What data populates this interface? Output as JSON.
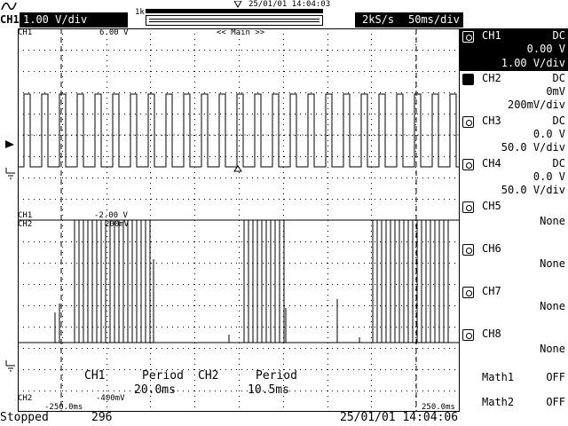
{
  "header": {
    "active_channel": "CH1",
    "active_scale": "1.00 V/div",
    "memory_label": "1k",
    "trigger_time": "25/01/01 14:04:03",
    "sample_rate": "2kS/s",
    "time_div": "50ms/div"
  },
  "plot": {
    "ch1_label": "CH1",
    "ch1_level": "6.00 V",
    "zoom_label": "<< Main >>",
    "ch1_label_lower": "CH1",
    "ch1_low_level": "-2.00 V",
    "ch2_label_top": "CH2",
    "ch2_top_level": "200mV",
    "ch2_label_bottom": "CH2",
    "ch2_bottom_level": "-400mV",
    "time_start": "-250.0ms",
    "time_end": "250.0ms",
    "measurements": [
      {
        "channel": "CH1",
        "name": "Period",
        "value": "20.0ms"
      },
      {
        "channel": "CH2",
        "name": "Period",
        "value": "10.5ms"
      }
    ]
  },
  "sidebar": {
    "channels": [
      {
        "name": "CH1",
        "coupling": "DC",
        "offset": "0.00 V",
        "scale": "1.00 V/div",
        "selected": true
      },
      {
        "name": "CH2",
        "coupling": "DC",
        "offset": "0mV",
        "scale": "200mV/div"
      },
      {
        "name": "CH3",
        "coupling": "DC",
        "offset": "0.0 V",
        "scale": "50.0 V/div"
      },
      {
        "name": "CH4",
        "coupling": "DC",
        "offset": "0.0 V",
        "scale": "50.0 V/div"
      },
      {
        "name": "CH5",
        "state": "None"
      },
      {
        "name": "CH6",
        "state": "None"
      },
      {
        "name": "CH7",
        "state": "None"
      },
      {
        "name": "CH8",
        "state": "None"
      }
    ],
    "math": [
      {
        "name": "Math1",
        "state": "OFF"
      },
      {
        "name": "Math2",
        "state": "OFF"
      }
    ]
  },
  "status": {
    "state": "Stopped",
    "acq_count": "296",
    "datetime": "25/01/01 14:04:06"
  }
}
